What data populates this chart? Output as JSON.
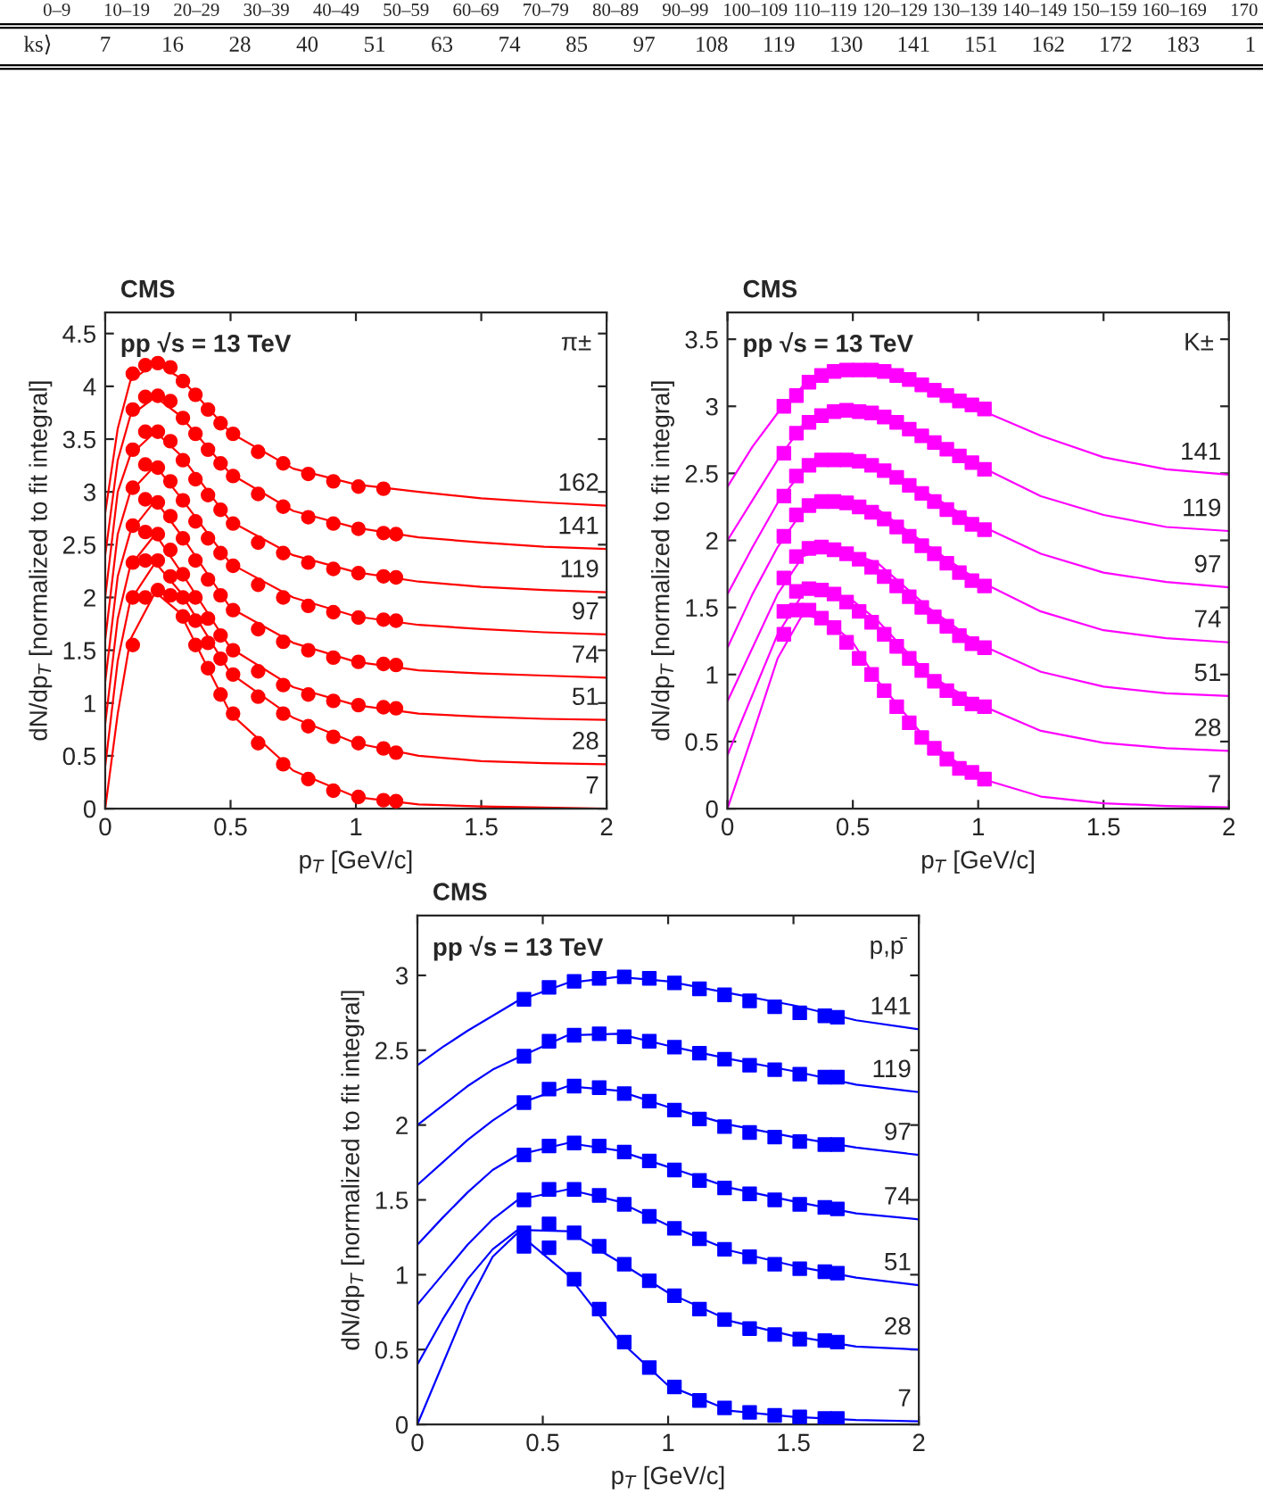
{
  "chart_data": [
    {
      "type": "other",
      "annotations": [
        "0–9",
        "10–19",
        "20–29",
        "30–39",
        "40–49",
        "50–59",
        "60–69",
        "70–79",
        "80–89",
        "90–99",
        "100–109",
        "110–119",
        "120–129",
        "130–139",
        "140–149",
        "150–159",
        "160–169",
        "170",
        "ks⟩",
        "7",
        "16",
        "28",
        "40",
        "51",
        "63",
        "74",
        "85",
        "97",
        "108",
        "119",
        "130",
        "141",
        "151",
        "162",
        "172",
        "183",
        "1"
      ]
    },
    {
      "type": "scatter",
      "title": "CMS",
      "subtitle": "pp √s = 13 TeV",
      "annotations": [
        "π±"
      ],
      "xlabel": "p$_{T}$ [GeV/c]",
      "ylabel": "dN/dp$_{T}$ [normalized to fit integral]",
      "xlim": [
        0,
        2
      ],
      "ylim": [
        0,
        4.7
      ],
      "xticks": [
        0,
        0.5,
        1,
        1.5,
        2
      ],
      "yticks": [
        0,
        0.5,
        1,
        1.5,
        2,
        2.5,
        3,
        3.5,
        4,
        4.5
      ],
      "grid": false,
      "legend": false,
      "marker": "circle",
      "x": [
        0.11,
        0.16,
        0.21,
        0.26,
        0.31,
        0.36,
        0.41,
        0.46,
        0.51,
        0.61,
        0.71,
        0.81,
        0.91,
        1.01,
        1.11,
        1.16
      ],
      "series": [
        {
          "color": "#ff0000",
          "values": [
            4.12,
            4.2,
            4.22,
            4.18,
            4.05,
            3.92,
            3.78,
            3.65,
            3.55,
            3.38,
            3.27,
            3.17,
            3.1,
            3.05,
            3.03,
            null
          ]
        },
        {
          "color": "#ff0000",
          "values": [
            3.78,
            3.9,
            3.91,
            3.86,
            3.7,
            3.55,
            3.4,
            3.27,
            3.15,
            2.98,
            2.86,
            2.76,
            2.7,
            2.65,
            2.61,
            2.6
          ]
        },
        {
          "color": "#ff0000",
          "values": [
            3.4,
            3.57,
            3.57,
            3.48,
            3.3,
            3.12,
            2.97,
            2.83,
            2.7,
            2.52,
            2.42,
            2.33,
            2.27,
            2.23,
            2.2,
            2.19
          ]
        },
        {
          "color": "#ff0000",
          "values": [
            3.04,
            3.26,
            3.23,
            3.1,
            2.92,
            2.72,
            2.56,
            2.42,
            2.3,
            2.12,
            2.0,
            1.92,
            1.86,
            1.81,
            1.79,
            1.78
          ]
        },
        {
          "color": "#ff0000",
          "values": [
            2.68,
            2.93,
            2.9,
            2.77,
            2.56,
            2.35,
            2.17,
            2.02,
            1.88,
            1.7,
            1.58,
            1.5,
            1.43,
            1.39,
            1.37,
            1.36
          ]
        },
        {
          "color": "#ff0000",
          "values": [
            2.33,
            2.62,
            2.6,
            2.45,
            2.22,
            2.0,
            1.8,
            1.64,
            1.5,
            1.3,
            1.17,
            1.08,
            1.02,
            0.98,
            0.96,
            0.95
          ]
        },
        {
          "color": "#ff0000",
          "values": [
            2.0,
            2.35,
            2.35,
            2.2,
            2.0,
            1.78,
            1.57,
            1.42,
            1.27,
            1.06,
            0.9,
            0.78,
            0.68,
            0.62,
            0.57,
            0.53
          ]
        },
        {
          "color": "#ff0000",
          "values": [
            1.55,
            2.0,
            2.07,
            2.02,
            1.82,
            1.55,
            1.33,
            1.08,
            0.9,
            0.62,
            0.42,
            0.28,
            0.17,
            0.11,
            0.08,
            0.07
          ]
        },
        {
          "type": "line",
          "name": "162",
          "marker": "none",
          "color": "#ff0000",
          "x": [
            0,
            0.05,
            0.1,
            0.2,
            0.3,
            0.5,
            0.75,
            1,
            1.25,
            1.5,
            1.75,
            2
          ],
          "values": [
            2.8,
            3.6,
            4.05,
            4.22,
            4.08,
            3.56,
            3.22,
            3.07,
            3.0,
            2.94,
            2.9,
            2.87
          ]
        },
        {
          "type": "line",
          "name": "141",
          "marker": "none",
          "color": "#ff0000",
          "x": [
            0,
            0.05,
            0.1,
            0.2,
            0.3,
            0.5,
            0.75,
            1,
            1.25,
            1.5,
            1.75,
            2
          ],
          "values": [
            2.4,
            3.3,
            3.72,
            3.9,
            3.72,
            3.17,
            2.82,
            2.66,
            2.57,
            2.52,
            2.48,
            2.46
          ]
        },
        {
          "type": "line",
          "name": "119",
          "marker": "none",
          "color": "#ff0000",
          "x": [
            0,
            0.05,
            0.1,
            0.2,
            0.3,
            0.5,
            0.75,
            1,
            1.25,
            1.5,
            1.75,
            2
          ],
          "values": [
            2.0,
            3.0,
            3.35,
            3.57,
            3.35,
            2.72,
            2.4,
            2.24,
            2.15,
            2.1,
            2.07,
            2.05
          ]
        },
        {
          "type": "line",
          "name": "97",
          "marker": "none",
          "color": "#ff0000",
          "x": [
            0,
            0.05,
            0.1,
            0.2,
            0.3,
            0.5,
            0.75,
            1,
            1.25,
            1.5,
            1.75,
            2
          ],
          "values": [
            1.6,
            2.6,
            3.0,
            3.25,
            2.95,
            2.32,
            2.0,
            1.82,
            1.74,
            1.7,
            1.67,
            1.65
          ]
        },
        {
          "type": "line",
          "name": "74",
          "marker": "none",
          "color": "#ff0000",
          "x": [
            0,
            0.05,
            0.1,
            0.2,
            0.3,
            0.5,
            0.75,
            1,
            1.25,
            1.5,
            1.75,
            2
          ],
          "values": [
            1.2,
            2.2,
            2.62,
            2.92,
            2.6,
            1.9,
            1.57,
            1.39,
            1.31,
            1.28,
            1.26,
            1.24
          ]
        },
        {
          "type": "line",
          "name": "51",
          "marker": "none",
          "color": "#ff0000",
          "x": [
            0,
            0.05,
            0.1,
            0.2,
            0.3,
            0.5,
            0.75,
            1,
            1.25,
            1.5,
            1.75,
            2
          ],
          "values": [
            0.8,
            1.8,
            2.3,
            2.6,
            2.25,
            1.52,
            1.15,
            0.98,
            0.9,
            0.87,
            0.85,
            0.84
          ]
        },
        {
          "type": "line",
          "name": "28",
          "marker": "none",
          "color": "#ff0000",
          "x": [
            0,
            0.05,
            0.1,
            0.2,
            0.3,
            0.5,
            0.75,
            1,
            1.25,
            1.5,
            1.75,
            2
          ],
          "values": [
            0.4,
            1.4,
            1.97,
            2.33,
            2.05,
            1.28,
            0.86,
            0.62,
            0.5,
            0.45,
            0.43,
            0.42
          ]
        },
        {
          "type": "line",
          "name": "7",
          "marker": "none",
          "color": "#ff0000",
          "x": [
            0,
            0.05,
            0.1,
            0.2,
            0.3,
            0.5,
            0.75,
            1,
            1.25,
            1.5,
            1.75,
            2
          ],
          "values": [
            0,
            0.9,
            1.6,
            2.05,
            1.85,
            0.9,
            0.36,
            0.11,
            0.04,
            0.02,
            0.01,
            0.0
          ]
        }
      ]
    },
    {
      "type": "scatter",
      "title": "CMS",
      "subtitle": "pp √s = 13 TeV",
      "annotations": [
        "K±"
      ],
      "xlabel": "p$_{T}$ [GeV/c]",
      "ylabel": "dN/dp$_{T}$ [normalized to fit integral]",
      "xlim": [
        0,
        2
      ],
      "ylim": [
        0,
        3.7
      ],
      "xticks": [
        0,
        0.5,
        1,
        1.5,
        2
      ],
      "yticks": [
        0,
        0.5,
        1,
        1.5,
        2,
        2.5,
        3,
        3.5
      ],
      "grid": false,
      "legend": false,
      "marker": "square",
      "x": [
        0.225,
        0.275,
        0.325,
        0.375,
        0.425,
        0.475,
        0.525,
        0.575,
        0.625,
        0.675,
        0.725,
        0.775,
        0.825,
        0.875,
        0.925,
        0.975,
        1.025
      ],
      "series": [
        {
          "color": "#ff00ff",
          "values": [
            3.0,
            3.08,
            3.18,
            3.23,
            3.26,
            3.27,
            3.27,
            3.27,
            3.26,
            3.23,
            3.2,
            3.16,
            3.12,
            3.08,
            3.04,
            3.01,
            2.98
          ]
        },
        {
          "color": "#ff00ff",
          "values": [
            2.65,
            2.8,
            2.88,
            2.93,
            2.96,
            2.97,
            2.96,
            2.95,
            2.92,
            2.88,
            2.83,
            2.78,
            2.73,
            2.68,
            2.63,
            2.58,
            2.53
          ]
        },
        {
          "color": "#ff00ff",
          "values": [
            2.33,
            2.48,
            2.56,
            2.6,
            2.6,
            2.6,
            2.59,
            2.56,
            2.52,
            2.47,
            2.41,
            2.35,
            2.29,
            2.23,
            2.17,
            2.12,
            2.08
          ]
        },
        {
          "color": "#ff00ff",
          "values": [
            2.03,
            2.19,
            2.26,
            2.29,
            2.29,
            2.28,
            2.25,
            2.21,
            2.16,
            2.1,
            2.03,
            1.96,
            1.9,
            1.83,
            1.76,
            1.7,
            1.66
          ]
        },
        {
          "color": "#ff00ff",
          "values": [
            1.72,
            1.88,
            1.94,
            1.95,
            1.93,
            1.9,
            1.86,
            1.8,
            1.73,
            1.66,
            1.58,
            1.5,
            1.43,
            1.36,
            1.29,
            1.23,
            1.2
          ]
        },
        {
          "color": "#ff00ff",
          "values": [
            1.47,
            1.62,
            1.64,
            1.63,
            1.6,
            1.54,
            1.47,
            1.39,
            1.3,
            1.21,
            1.12,
            1.03,
            0.95,
            0.88,
            0.82,
            0.78,
            0.76
          ]
        },
        {
          "color": "#ff00ff",
          "values": [
            1.3,
            1.48,
            1.48,
            1.42,
            1.35,
            1.24,
            1.12,
            1.0,
            0.88,
            0.76,
            0.64,
            0.53,
            0.45,
            0.37,
            0.3,
            0.27,
            0.22
          ]
        },
        {
          "type": "line",
          "name": "141",
          "marker": "none",
          "color": "#ff00ff",
          "x": [
            0,
            0.1,
            0.2,
            0.3,
            0.4,
            0.5,
            0.6,
            0.8,
            1,
            1.25,
            1.5,
            1.75,
            2
          ],
          "values": [
            2.4,
            2.7,
            2.95,
            3.15,
            3.25,
            3.27,
            3.27,
            3.16,
            2.98,
            2.78,
            2.62,
            2.53,
            2.49
          ]
        },
        {
          "type": "line",
          "name": "119",
          "marker": "none",
          "color": "#ff00ff",
          "x": [
            0,
            0.1,
            0.2,
            0.3,
            0.4,
            0.5,
            0.6,
            0.8,
            1,
            1.25,
            1.5,
            1.75,
            2
          ],
          "values": [
            2.0,
            2.3,
            2.6,
            2.86,
            2.95,
            2.97,
            2.95,
            2.78,
            2.56,
            2.33,
            2.19,
            2.1,
            2.07
          ]
        },
        {
          "type": "line",
          "name": "97",
          "marker": "none",
          "color": "#ff00ff",
          "x": [
            0,
            0.1,
            0.2,
            0.3,
            0.4,
            0.5,
            0.6,
            0.8,
            1,
            1.25,
            1.5,
            1.75,
            2
          ],
          "values": [
            1.6,
            1.95,
            2.28,
            2.52,
            2.6,
            2.6,
            2.56,
            2.35,
            2.12,
            1.9,
            1.76,
            1.69,
            1.65
          ]
        },
        {
          "type": "line",
          "name": "74",
          "marker": "none",
          "color": "#ff00ff",
          "x": [
            0,
            0.1,
            0.2,
            0.3,
            0.4,
            0.5,
            0.6,
            0.8,
            1,
            1.25,
            1.5,
            1.75,
            2
          ],
          "values": [
            1.2,
            1.6,
            1.95,
            2.22,
            2.29,
            2.28,
            2.23,
            1.96,
            1.7,
            1.47,
            1.33,
            1.27,
            1.24
          ]
        },
        {
          "type": "line",
          "name": "51",
          "marker": "none",
          "color": "#ff00ff",
          "x": [
            0,
            0.1,
            0.2,
            0.3,
            0.4,
            0.5,
            0.6,
            0.8,
            1,
            1.25,
            1.5,
            1.75,
            2
          ],
          "values": [
            0.8,
            1.2,
            1.6,
            1.88,
            1.95,
            1.9,
            1.83,
            1.5,
            1.23,
            1.02,
            0.91,
            0.86,
            0.84
          ]
        },
        {
          "type": "line",
          "name": "28",
          "marker": "none",
          "color": "#ff00ff",
          "x": [
            0,
            0.1,
            0.2,
            0.3,
            0.4,
            0.5,
            0.6,
            0.8,
            1,
            1.25,
            1.5,
            1.75,
            2
          ],
          "values": [
            0.4,
            0.85,
            1.3,
            1.6,
            1.63,
            1.55,
            1.4,
            1.0,
            0.78,
            0.58,
            0.49,
            0.45,
            0.43
          ]
        },
        {
          "type": "line",
          "name": "7",
          "marker": "none",
          "color": "#ff00ff",
          "x": [
            0,
            0.1,
            0.2,
            0.3,
            0.4,
            0.5,
            0.6,
            0.8,
            1,
            1.25,
            1.5,
            1.75,
            2
          ],
          "values": [
            0,
            0.55,
            1.12,
            1.45,
            1.4,
            1.24,
            0.95,
            0.5,
            0.23,
            0.09,
            0.04,
            0.02,
            0.01
          ]
        }
      ]
    },
    {
      "type": "scatter",
      "title": "CMS",
      "subtitle": "pp √s = 13 TeV",
      "annotations": [
        "p,p̄"
      ],
      "xlabel": "p$_{T}$ [GeV/c]",
      "ylabel": "dN/dp$_{T}$ [normalized to fit integral]",
      "xlim": [
        0,
        2
      ],
      "ylim": [
        0,
        3.4
      ],
      "xticks": [
        0,
        0.5,
        1,
        1.5,
        2
      ],
      "yticks": [
        0,
        0.5,
        1,
        1.5,
        2,
        2.5,
        3
      ],
      "grid": false,
      "legend": false,
      "marker": "square",
      "x": [
        0.425,
        0.525,
        0.625,
        0.725,
        0.825,
        0.925,
        1.025,
        1.125,
        1.225,
        1.325,
        1.425,
        1.525,
        1.625,
        1.675
      ],
      "series": [
        {
          "color": "#0000ff",
          "values": [
            2.84,
            2.92,
            2.96,
            2.98,
            2.99,
            2.98,
            2.95,
            2.91,
            2.87,
            2.83,
            2.79,
            2.75,
            2.73,
            2.72
          ]
        },
        {
          "color": "#0000ff",
          "values": [
            2.46,
            2.56,
            2.6,
            2.61,
            2.59,
            2.56,
            2.52,
            2.48,
            2.44,
            2.4,
            2.37,
            2.34,
            2.32,
            2.32
          ]
        },
        {
          "color": "#0000ff",
          "values": [
            2.15,
            2.24,
            2.26,
            2.25,
            2.21,
            2.16,
            2.1,
            2.04,
            1.99,
            1.95,
            1.92,
            1.89,
            1.87,
            1.87
          ]
        },
        {
          "color": "#0000ff",
          "values": [
            1.8,
            1.86,
            1.88,
            1.86,
            1.82,
            1.76,
            1.7,
            1.63,
            1.58,
            1.54,
            1.5,
            1.47,
            1.45,
            1.44
          ]
        },
        {
          "color": "#0000ff",
          "values": [
            1.5,
            1.57,
            1.57,
            1.53,
            1.47,
            1.39,
            1.31,
            1.24,
            1.17,
            1.12,
            1.07,
            1.04,
            1.02,
            1.01
          ]
        },
        {
          "color": "#0000ff",
          "values": [
            1.28,
            1.34,
            1.28,
            1.19,
            1.07,
            0.96,
            0.86,
            0.77,
            0.7,
            0.64,
            0.6,
            0.57,
            0.56,
            0.55
          ]
        },
        {
          "color": "#0000ff",
          "values": [
            1.19,
            1.18,
            0.97,
            0.77,
            0.55,
            0.38,
            0.25,
            0.16,
            0.11,
            0.08,
            0.06,
            0.05,
            0.04,
            0.04
          ]
        },
        {
          "type": "line",
          "name": "141",
          "marker": "none",
          "color": "#0000ff",
          "x": [
            0,
            0.1,
            0.2,
            0.3,
            0.4,
            0.6,
            0.8,
            1,
            1.25,
            1.5,
            1.75,
            2
          ],
          "values": [
            2.4,
            2.52,
            2.63,
            2.73,
            2.83,
            2.95,
            2.99,
            2.96,
            2.88,
            2.8,
            2.7,
            2.64
          ]
        },
        {
          "type": "line",
          "name": "119",
          "marker": "none",
          "color": "#0000ff",
          "x": [
            0,
            0.1,
            0.2,
            0.3,
            0.4,
            0.6,
            0.8,
            1,
            1.25,
            1.5,
            1.75,
            2
          ],
          "values": [
            2.0,
            2.13,
            2.26,
            2.37,
            2.45,
            2.6,
            2.61,
            2.53,
            2.44,
            2.36,
            2.27,
            2.22
          ]
        },
        {
          "type": "line",
          "name": "97",
          "marker": "none",
          "color": "#0000ff",
          "x": [
            0,
            0.1,
            0.2,
            0.3,
            0.4,
            0.6,
            0.8,
            1,
            1.25,
            1.5,
            1.75,
            2
          ],
          "values": [
            1.6,
            1.75,
            1.9,
            2.03,
            2.14,
            2.26,
            2.23,
            2.12,
            2.0,
            1.92,
            1.85,
            1.8
          ]
        },
        {
          "type": "line",
          "name": "74",
          "marker": "none",
          "color": "#0000ff",
          "x": [
            0,
            0.1,
            0.2,
            0.3,
            0.4,
            0.6,
            0.8,
            1,
            1.25,
            1.5,
            1.75,
            2
          ],
          "values": [
            1.2,
            1.38,
            1.55,
            1.7,
            1.8,
            1.88,
            1.83,
            1.72,
            1.58,
            1.49,
            1.41,
            1.37
          ]
        },
        {
          "type": "line",
          "name": "51",
          "marker": "none",
          "color": "#0000ff",
          "x": [
            0,
            0.1,
            0.2,
            0.3,
            0.4,
            0.6,
            0.8,
            1,
            1.25,
            1.5,
            1.75,
            2
          ],
          "values": [
            0.8,
            1.0,
            1.2,
            1.37,
            1.5,
            1.57,
            1.49,
            1.33,
            1.16,
            1.06,
            0.98,
            0.93
          ]
        },
        {
          "type": "line",
          "name": "28",
          "marker": "none",
          "color": "#0000ff",
          "x": [
            0,
            0.1,
            0.2,
            0.3,
            0.4,
            0.6,
            0.8,
            1,
            1.25,
            1.5,
            1.75,
            2
          ],
          "values": [
            0.4,
            0.7,
            0.97,
            1.17,
            1.3,
            1.29,
            1.09,
            0.88,
            0.69,
            0.59,
            0.52,
            0.5
          ]
        },
        {
          "type": "line",
          "name": "7",
          "marker": "none",
          "color": "#0000ff",
          "x": [
            0,
            0.1,
            0.2,
            0.3,
            0.4,
            0.6,
            0.8,
            1,
            1.25,
            1.5,
            1.75,
            2
          ],
          "values": [
            0,
            0.4,
            0.8,
            1.12,
            1.28,
            1.0,
            0.57,
            0.26,
            0.09,
            0.05,
            0.03,
            0.02
          ]
        }
      ]
    }
  ]
}
